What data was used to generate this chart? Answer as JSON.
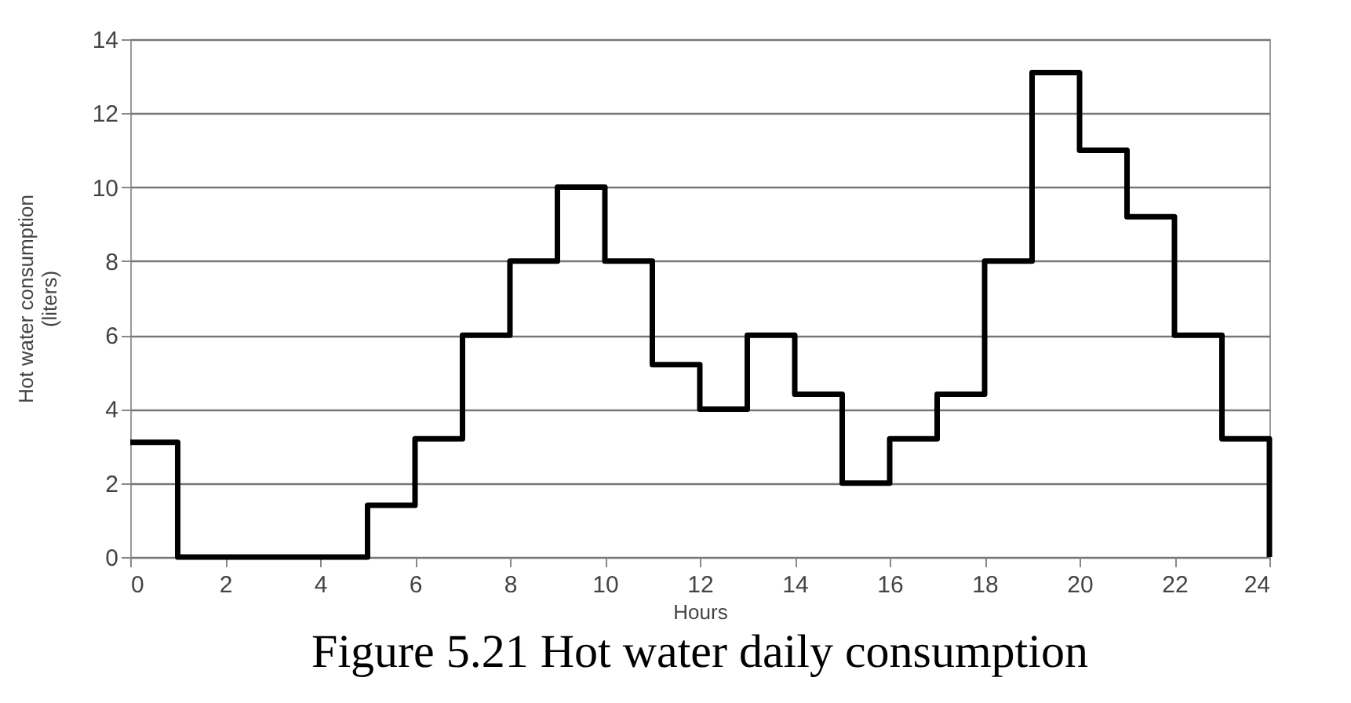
{
  "chart_data": {
    "type": "step",
    "xlabel": "Hours",
    "ylabel": "Hot water consumption (liters)",
    "annotations": [
      "Figure 5.21 Hot water daily consumption"
    ],
    "x": [
      0,
      1,
      2,
      3,
      4,
      5,
      6,
      7,
      8,
      9,
      10,
      11,
      12,
      13,
      14,
      15,
      16,
      17,
      18,
      19,
      20,
      21,
      22,
      23,
      24
    ],
    "series": [
      {
        "color": "#000000",
        "values": [
          3.1,
          0,
          0,
          0,
          0,
          1.4,
          3.2,
          6,
          8,
          10,
          8,
          5.2,
          4,
          6,
          4.4,
          2,
          3.2,
          4.4,
          8,
          13.1,
          11,
          9.2,
          6,
          3.2,
          0
        ]
      }
    ],
    "xlim": [
      0,
      24
    ],
    "xticks": [
      0,
      2,
      4,
      6,
      8,
      10,
      12,
      14,
      16,
      18,
      20,
      22,
      24
    ],
    "ylim": [
      0,
      14
    ],
    "yticks": [
      0,
      2,
      4,
      6,
      8,
      10,
      12,
      14
    ],
    "grid": "y",
    "legend": false,
    "marker": "none",
    "line_style": "solid"
  }
}
